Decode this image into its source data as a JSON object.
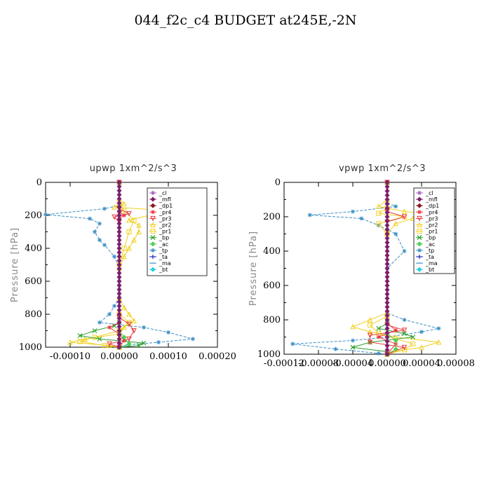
{
  "title": "044_f2c_c4  BUDGET at245E,-2N",
  "legend_items": [
    {
      "label": "_cl",
      "color": "#9b59b6",
      "marker": "star"
    },
    {
      "label": "_mfl",
      "color": "#7b1f6a",
      "marker": "diamond"
    },
    {
      "label": "_dp1",
      "color": "#8b1a1a",
      "marker": "diamond"
    },
    {
      "label": "_pr4",
      "color": "#e8383d",
      "marker": "star"
    },
    {
      "label": "_pr3",
      "color": "#e8383d",
      "marker": "triangle-down"
    },
    {
      "label": "_pr2",
      "color": "#f0d020",
      "marker": "triangle"
    },
    {
      "label": "_pr1",
      "color": "#f0d020",
      "marker": "square"
    },
    {
      "label": "_bp",
      "color": "#2ca02c",
      "marker": "x"
    },
    {
      "label": "_ac",
      "color": "#50d050",
      "marker": "diamond"
    },
    {
      "label": "_tp",
      "color": "#3a8fc4",
      "marker": "star"
    },
    {
      "label": "_ta",
      "color": "#2020c0",
      "marker": "plus"
    },
    {
      "label": "_ma",
      "color": "#3a8fc4",
      "marker": "dash"
    },
    {
      "label": "_bt",
      "color": "#20d0e0",
      "marker": "diamond"
    }
  ],
  "chart_data": [
    {
      "type": "line",
      "title": "upwp   1xm^2/s^3",
      "ylabel": "Pressure [hPa]",
      "xlim": [
        -0.00015,
        0.0002
      ],
      "ylim": [
        1000,
        0
      ],
      "xticks": [
        -0.0001,
        0,
        0.0001,
        0.0002
      ],
      "xtick_labels": [
        "-0.00010",
        "0.00000",
        "0.00010",
        "0.00020"
      ],
      "yticks": [
        0,
        200,
        400,
        600,
        800,
        1000
      ],
      "ytick_labels": [
        "0",
        "200",
        "400",
        "600",
        "800",
        "1000"
      ],
      "legend_position": "top-right",
      "series": [
        {
          "name": "_tp",
          "points": [
            [
              0,
              0
            ],
            [
              0,
              140
            ],
            [
              -3e-05,
              160
            ],
            [
              -0.00015,
              195
            ],
            [
              -6e-05,
              220
            ],
            [
              -4e-05,
              250
            ],
            [
              -5e-05,
              300
            ],
            [
              -4e-05,
              350
            ],
            [
              -3e-05,
              380
            ],
            [
              -1e-05,
              450
            ],
            [
              0,
              520
            ],
            [
              0,
              700
            ],
            [
              -1e-05,
              750
            ],
            [
              -2e-05,
              800
            ],
            [
              -4e-05,
              850
            ],
            [
              5e-05,
              880
            ],
            [
              0.0001,
              910
            ],
            [
              0.00015,
              950
            ],
            [
              8e-05,
              970
            ],
            [
              2e-05,
              985
            ],
            [
              0,
              1000
            ]
          ]
        },
        {
          "name": "_pr2",
          "points": [
            [
              0,
              0
            ],
            [
              0,
              100
            ],
            [
              1e-05,
              130
            ],
            [
              -1e-05,
              150
            ],
            [
              9e-05,
              170
            ],
            [
              6e-05,
              200
            ],
            [
              2e-05,
              230
            ],
            [
              4e-05,
              260
            ],
            [
              4e-05,
              300
            ],
            [
              3e-05,
              350
            ],
            [
              2e-05,
              400
            ],
            [
              1e-05,
              450
            ],
            [
              0,
              520
            ],
            [
              0,
              700
            ],
            [
              1e-05,
              760
            ],
            [
              2e-05,
              800
            ],
            [
              3e-05,
              840
            ],
            [
              1e-05,
              880
            ],
            [
              0,
              920
            ],
            [
              -7e-05,
              950
            ],
            [
              -0.0001,
              970
            ],
            [
              -2e-05,
              990
            ],
            [
              0,
              1000
            ]
          ]
        },
        {
          "name": "_pr1",
          "points": [
            [
              0,
              0
            ],
            [
              0,
              140
            ],
            [
              1e-05,
              170
            ],
            [
              3e-05,
              230
            ],
            [
              2e-05,
              300
            ],
            [
              1e-05,
              400
            ],
            [
              0,
              500
            ],
            [
              0,
              800
            ],
            [
              2e-05,
              850
            ],
            [
              0,
              900
            ],
            [
              -5e-05,
              940
            ],
            [
              -8e-05,
              965
            ],
            [
              -3e-05,
              990
            ],
            [
              0,
              1000
            ]
          ]
        },
        {
          "name": "_bp",
          "points": [
            [
              0,
              0
            ],
            [
              0,
              850
            ],
            [
              -1e-05,
              870
            ],
            [
              -5e-05,
              900
            ],
            [
              -8e-05,
              930
            ],
            [
              -4e-05,
              950
            ],
            [
              5e-05,
              975
            ],
            [
              4e-05,
              990
            ],
            [
              0,
              1000
            ]
          ]
        },
        {
          "name": "_pr3",
          "points": [
            [
              0,
              0
            ],
            [
              0,
              160
            ],
            [
              2e-05,
              190
            ],
            [
              -1e-05,
              210
            ],
            [
              0,
              240
            ],
            [
              0,
              820
            ],
            [
              2e-05,
              860
            ],
            [
              3e-05,
              900
            ],
            [
              2e-05,
              950
            ],
            [
              -2e-05,
              980
            ],
            [
              0,
              1000
            ]
          ]
        },
        {
          "name": "_pr4",
          "points": [
            [
              0,
              0
            ],
            [
              0,
              180
            ],
            [
              1e-05,
              200
            ],
            [
              0,
              220
            ],
            [
              0,
              850
            ],
            [
              -2e-05,
              880
            ],
            [
              0,
              920
            ],
            [
              1e-05,
              960
            ],
            [
              0,
              1000
            ]
          ]
        },
        {
          "name": "_ac",
          "points": [
            [
              0,
              0
            ],
            [
              0,
              900
            ],
            [
              1e-05,
              940
            ],
            [
              2e-05,
              980
            ],
            [
              0,
              1000
            ]
          ]
        },
        {
          "name": "_dp1",
          "points": [
            [
              0,
              0
            ],
            [
              0,
              1000
            ]
          ]
        },
        {
          "name": "_mfl",
          "points": [
            [
              0,
              0
            ],
            [
              0,
              1000
            ]
          ]
        },
        {
          "name": "_cl",
          "points": [
            [
              0,
              0
            ],
            [
              0,
              1000
            ]
          ]
        }
      ]
    },
    {
      "type": "line",
      "title": "vpwp   1xm^2/s^3",
      "ylabel": "Pressure [hPa]",
      "xlim": [
        -0.00012,
        8e-05
      ],
      "ylim": [
        1000,
        0
      ],
      "xticks": [
        -0.00012,
        -8e-05,
        -4e-05,
        0,
        4e-05,
        8e-05
      ],
      "xtick_labels": [
        "-0.00012",
        "-0.00008",
        "-0.00004",
        "0.00000",
        "0.00004",
        "0.00008"
      ],
      "yticks": [
        0,
        200,
        400,
        600,
        800,
        1000
      ],
      "ytick_labels": [
        "0",
        "200",
        "400",
        "600",
        "800",
        "1000"
      ],
      "legend_position": "top-right",
      "series": [
        {
          "name": "_tp",
          "points": [
            [
              0,
              0
            ],
            [
              0,
              120
            ],
            [
              1e-05,
              140
            ],
            [
              -4e-05,
              170
            ],
            [
              -9e-05,
              190
            ],
            [
              -3e-05,
              210
            ],
            [
              -1e-05,
              250
            ],
            [
              1e-05,
              300
            ],
            [
              2e-05,
              400
            ],
            [
              0,
              500
            ],
            [
              0,
              760
            ],
            [
              2e-05,
              800
            ],
            [
              6e-05,
              850
            ],
            [
              4e-05,
              870
            ],
            [
              0,
              900
            ],
            [
              -4e-05,
              920
            ],
            [
              -0.00011,
              940
            ],
            [
              -6e-05,
              970
            ],
            [
              -1e-05,
              995
            ],
            [
              0,
              1000
            ]
          ]
        },
        {
          "name": "_pr2",
          "points": [
            [
              0,
              0
            ],
            [
              0,
              100
            ],
            [
              -1e-05,
              140
            ],
            [
              2e-05,
              170
            ],
            [
              7e-05,
              190
            ],
            [
              3e-05,
              210
            ],
            [
              1e-05,
              240
            ],
            [
              0,
              300
            ],
            [
              0,
              760
            ],
            [
              -2e-05,
              800
            ],
            [
              -4e-05,
              840
            ],
            [
              -2e-05,
              870
            ],
            [
              1e-05,
              900
            ],
            [
              6e-05,
              930
            ],
            [
              4e-05,
              960
            ],
            [
              0,
              990
            ],
            [
              0,
              1000
            ]
          ]
        },
        {
          "name": "_pr1",
          "points": [
            [
              0,
              0
            ],
            [
              0,
              150
            ],
            [
              -1e-05,
              180
            ],
            [
              2e-05,
              200
            ],
            [
              -1e-05,
              240
            ],
            [
              0,
              300
            ],
            [
              0,
              780
            ],
            [
              -2e-05,
              830
            ],
            [
              -1e-05,
              880
            ],
            [
              3e-05,
              940
            ],
            [
              2e-05,
              975
            ],
            [
              0,
              1000
            ]
          ]
        },
        {
          "name": "_bp",
          "points": [
            [
              0,
              0
            ],
            [
              0,
              820
            ],
            [
              -1e-05,
              850
            ],
            [
              2e-05,
              880
            ],
            [
              3e-05,
              900
            ],
            [
              -2e-05,
              930
            ],
            [
              -4e-05,
              960
            ],
            [
              0,
              985
            ],
            [
              0,
              1000
            ]
          ]
        },
        {
          "name": "_pr3",
          "points": [
            [
              0,
              0
            ],
            [
              0,
              170
            ],
            [
              2e-05,
              200
            ],
            [
              0,
              230
            ],
            [
              0,
              830
            ],
            [
              2e-05,
              860
            ],
            [
              -2e-05,
              890
            ],
            [
              -2e-05,
              930
            ],
            [
              2e-05,
              960
            ],
            [
              0,
              1000
            ]
          ]
        },
        {
          "name": "_pr4",
          "points": [
            [
              0,
              0
            ],
            [
              0,
              820
            ],
            [
              1e-05,
              860
            ],
            [
              -1e-05,
              900
            ],
            [
              1e-05,
              940
            ],
            [
              0,
              1000
            ]
          ]
        },
        {
          "name": "_ac",
          "points": [
            [
              0,
              0
            ],
            [
              0,
              880
            ],
            [
              1e-05,
              920
            ],
            [
              1e-05,
              970
            ],
            [
              0,
              1000
            ]
          ]
        },
        {
          "name": "_dp1",
          "points": [
            [
              0,
              0
            ],
            [
              0,
              1000
            ]
          ]
        },
        {
          "name": "_mfl",
          "points": [
            [
              0,
              0
            ],
            [
              0,
              1000
            ]
          ]
        },
        {
          "name": "_cl",
          "points": [
            [
              0,
              0
            ],
            [
              0,
              1000
            ]
          ]
        }
      ]
    }
  ]
}
